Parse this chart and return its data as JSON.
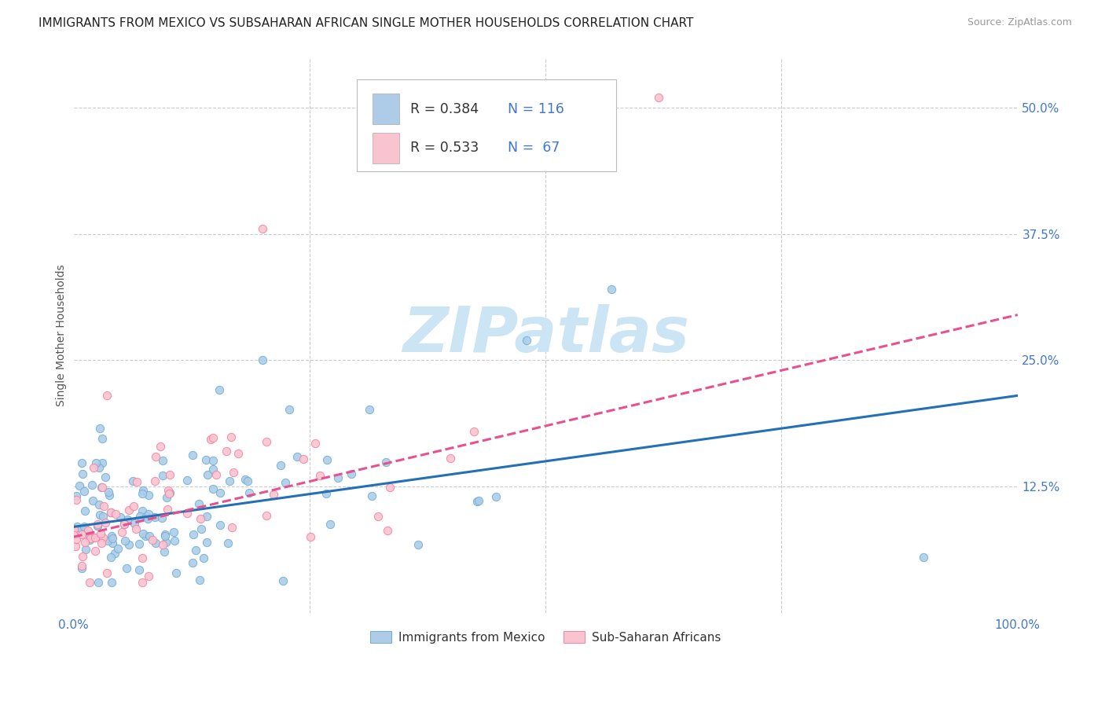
{
  "title": "IMMIGRANTS FROM MEXICO VS SUBSAHARAN AFRICAN SINGLE MOTHER HOUSEHOLDS CORRELATION CHART",
  "source": "Source: ZipAtlas.com",
  "ylabel": "Single Mother Households",
  "blue_R": 0.384,
  "blue_N": 116,
  "pink_R": 0.533,
  "pink_N": 67,
  "blue_face_color": "#aecce8",
  "blue_edge_color": "#6aafd6",
  "pink_face_color": "#f9c4d0",
  "pink_edge_color": "#f580a0",
  "blue_line_color": "#2470b4",
  "pink_line_color": "#e85090",
  "legend_label_blue": "Immigrants from Mexico",
  "legend_label_pink": "Sub-Saharan Africans",
  "watermark": "ZIPatlas",
  "watermark_color": "#cce5f5",
  "grid_color": "#cccccc",
  "background_color": "#ffffff",
  "title_color": "#222222",
  "source_color": "#999999",
  "tick_color": "#4477cc",
  "ylabel_color": "#555555",
  "xlim": [
    0.0,
    1.0
  ],
  "ylim": [
    0.0,
    0.55
  ],
  "blue_trend_x": [
    0.0,
    1.0
  ],
  "blue_trend_y": [
    0.085,
    0.215
  ],
  "pink_trend_x": [
    0.0,
    1.0
  ],
  "pink_trend_y": [
    0.075,
    0.295
  ]
}
